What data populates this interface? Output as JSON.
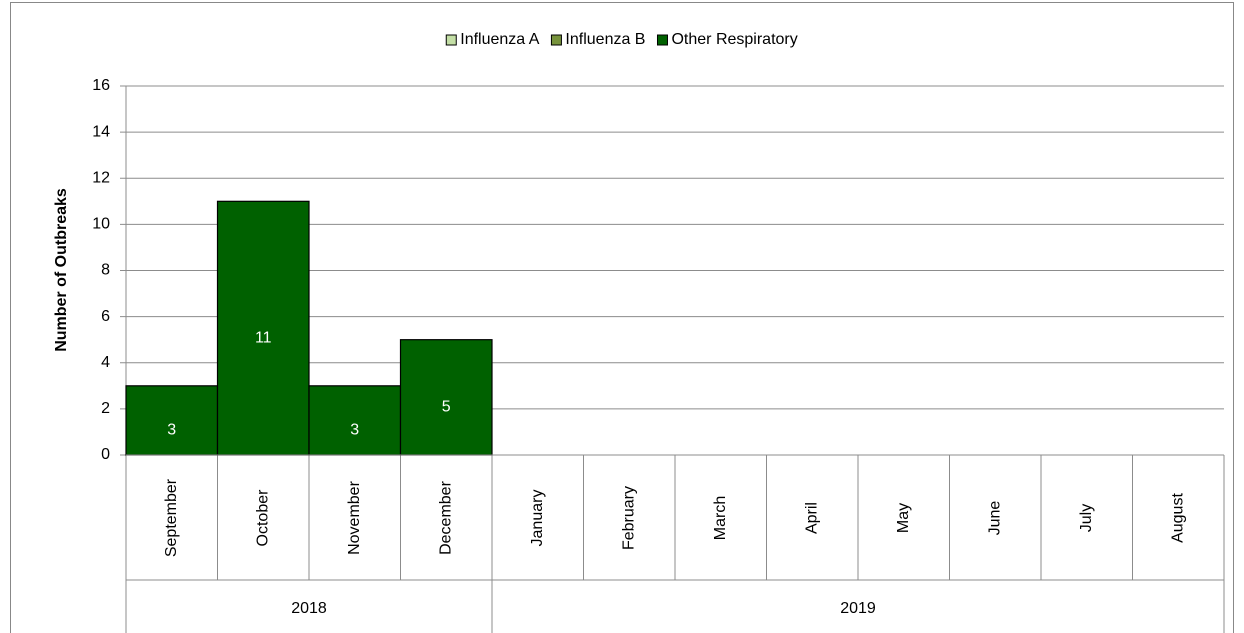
{
  "chart_data": {
    "type": "stacked_bar",
    "y_label": "Number of Outbreaks",
    "groups": [
      {
        "label": "2018",
        "categories": [
          "September",
          "October",
          "November",
          "December"
        ]
      },
      {
        "label": "2019",
        "categories": [
          "January",
          "February",
          "March",
          "April",
          "May",
          "June",
          "July",
          "August"
        ]
      }
    ],
    "series": [
      {
        "name": "Influenza A",
        "color": "#c4dfa6",
        "values": [
          0,
          0,
          0,
          0,
          null,
          null,
          null,
          null,
          null,
          null,
          null,
          null
        ]
      },
      {
        "name": "Influenza B",
        "color": "#77933c",
        "values": [
          0,
          0,
          0,
          0,
          null,
          null,
          null,
          null,
          null,
          null,
          null,
          null
        ]
      },
      {
        "name": "Other Respiratory",
        "color": "#006100",
        "values": [
          3,
          11,
          3,
          5,
          null,
          null,
          null,
          null,
          null,
          null,
          null,
          null
        ],
        "show_value_labels": true
      }
    ],
    "ylim": [
      0,
      16
    ],
    "yticks": [
      0,
      2,
      4,
      6,
      8,
      10,
      12,
      14,
      16
    ],
    "grid": true,
    "legend": "top"
  }
}
